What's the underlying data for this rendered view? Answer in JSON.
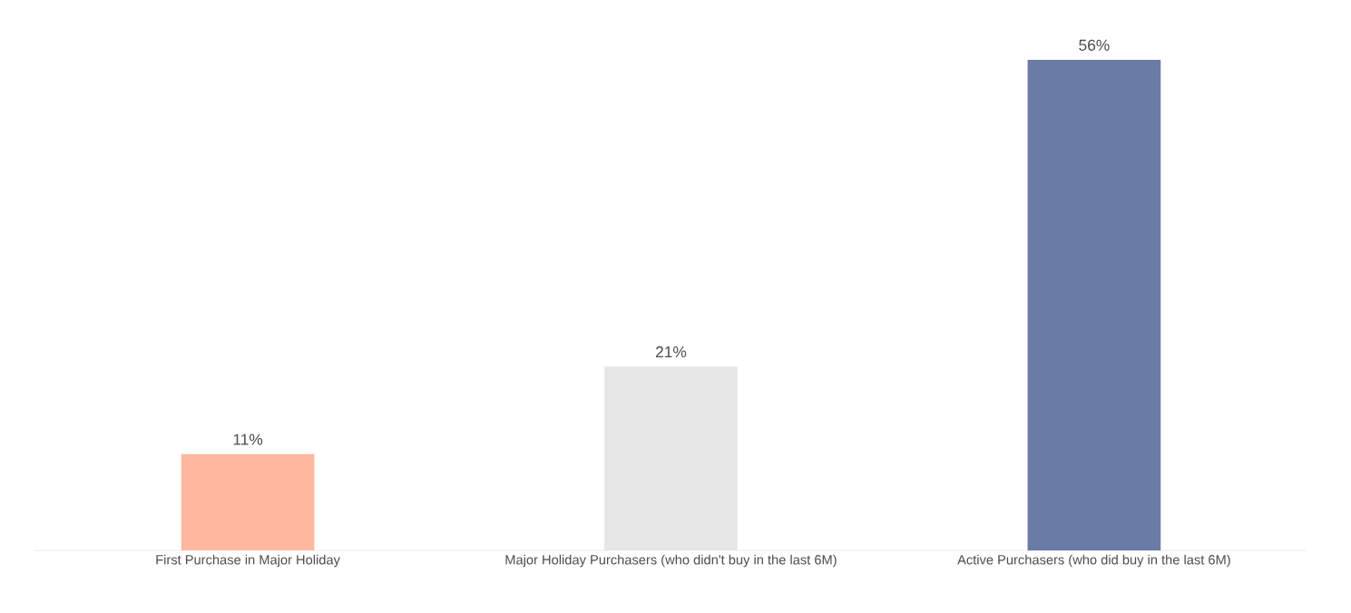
{
  "chart_data": {
    "type": "bar",
    "categories": [
      "First Purchase in Major Holiday",
      "Major Holiday Purchasers (who didn't buy in the last 6M)",
      "Active Purchasers (who did buy in the last 6M)"
    ],
    "values": [
      11,
      21,
      56
    ],
    "colors": [
      "#ffb8a0",
      "#e6e6e6",
      "#6a7ba6"
    ],
    "value_labels": [
      "11%",
      "21%",
      "56%"
    ]
  }
}
